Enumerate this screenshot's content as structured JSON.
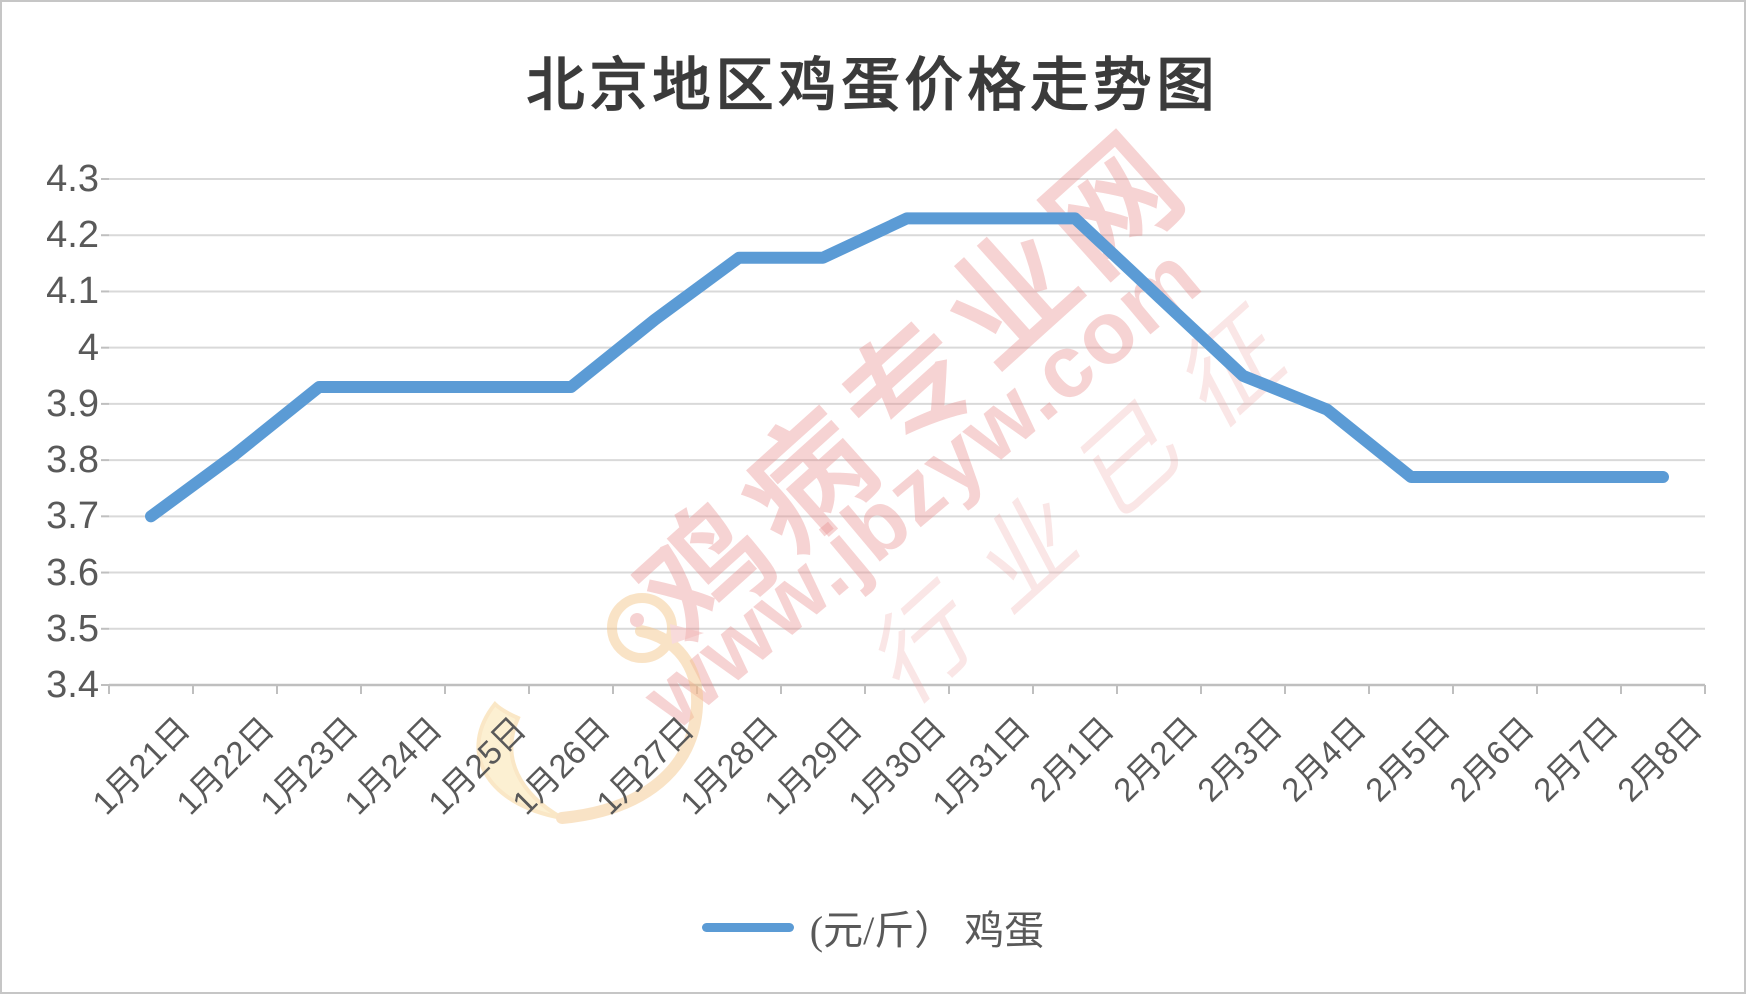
{
  "title": "北京地区鸡蛋价格走势图",
  "legend": {
    "label": "(元/斤） 鸡蛋",
    "marker_color": "#5b9bd5"
  },
  "watermark": {
    "brand_text": "鸡病专业网",
    "url_text": "www.jbzyw.com",
    "stamp_text": "行业已征",
    "logo": "rooster-logo",
    "pink": "#e98c8c",
    "yellow": "#f8d99a"
  },
  "chart_data": {
    "type": "line",
    "title": "北京地区鸡蛋价格走势图",
    "xlabel": "",
    "ylabel": "",
    "unit": "元/斤",
    "categories": [
      "1月21日",
      "1月22日",
      "1月23日",
      "1月24日",
      "1月25日",
      "1月26日",
      "1月27日",
      "1月28日",
      "1月29日",
      "1月30日",
      "1月31日",
      "2月1日",
      "2月2日",
      "2月3日",
      "2月4日",
      "2月5日",
      "2月6日",
      "2月7日",
      "2月8日"
    ],
    "series": [
      {
        "name": "(元/斤） 鸡蛋",
        "color": "#5b9bd5",
        "values": [
          3.7,
          3.81,
          3.93,
          3.93,
          3.93,
          3.93,
          4.05,
          4.16,
          4.16,
          4.23,
          4.23,
          4.23,
          4.09,
          3.95,
          3.89,
          3.77,
          3.77,
          3.77,
          3.77
        ]
      }
    ],
    "ylim": [
      3.4,
      4.3
    ],
    "ytick_step": 0.1,
    "ytick_labels": [
      "3.4",
      "3.5",
      "3.6",
      "3.7",
      "3.8",
      "3.9",
      "4",
      "4.1",
      "4.2",
      "4.3"
    ],
    "grid": true,
    "legend_position": "bottom",
    "colors": {
      "gridline": "#d9d9d9",
      "axis": "#bfbfbf",
      "tick_label": "#595959",
      "title": "#3b3b3b",
      "line": "#5b9bd5"
    }
  }
}
